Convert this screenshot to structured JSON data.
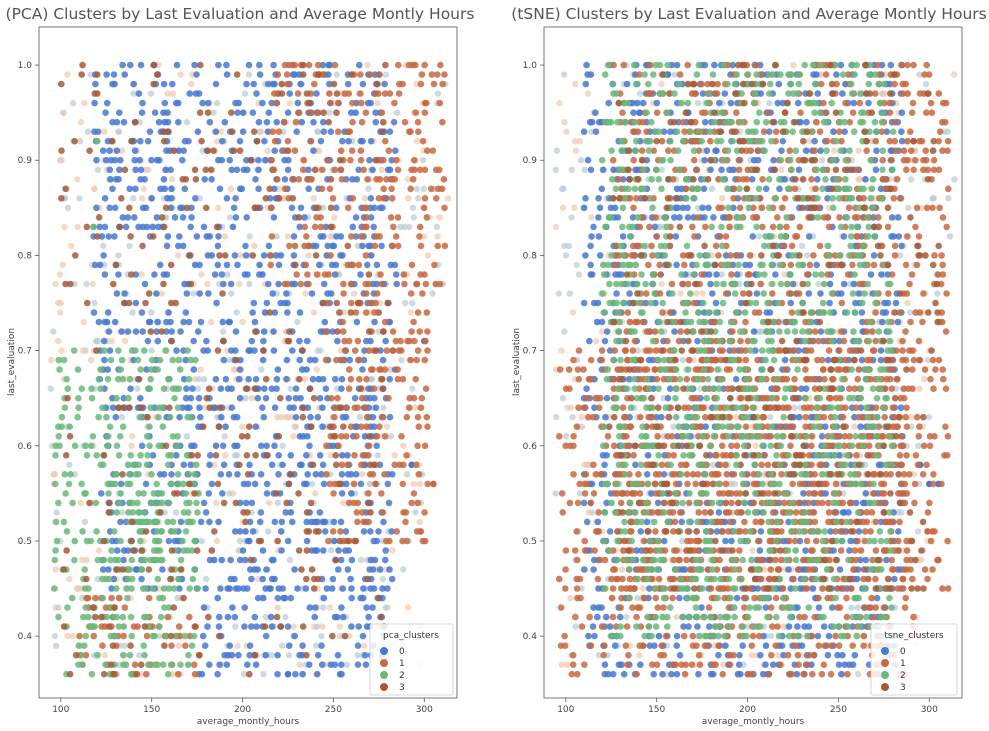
{
  "colors": {
    "cluster_0": "#4878d0",
    "cluster_1": "#c8693f",
    "cluster_2": "#6ab97a",
    "cluster_3": "#a65a3a",
    "faint_blue": "#b9cbd6",
    "faint_peach": "#f0c9ad"
  },
  "chart_data": [
    {
      "type": "scatter",
      "title": "(PCA) Clusters by Last Evaluation and Average Montly Hours",
      "xlabel": "average_montly_hours",
      "ylabel": "last_evaluation",
      "xlim": [
        88,
        318
      ],
      "ylim": [
        0.335,
        1.04
      ],
      "x_ticks": [
        100,
        150,
        200,
        250,
        300
      ],
      "y_ticks": [
        0.4,
        0.5,
        0.6,
        0.7,
        0.8,
        0.9,
        1.0
      ],
      "grid": false,
      "legend": {
        "title": "pca_clusters",
        "placement": "lower-right",
        "entries": [
          "0",
          "1",
          "2",
          "3"
        ]
      },
      "series": [
        {
          "name": "0",
          "color_key": "cluster_0",
          "regions": [
            [
              118,
              285,
              0.64,
              1.0
            ],
            [
              122,
              282,
              0.45,
              0.64
            ],
            [
              175,
              278,
              0.36,
              0.45
            ]
          ],
          "outliers": [
            [
              300,
              0.71
            ],
            [
              293,
              0.58
            ],
            [
              225,
              0.36
            ]
          ]
        },
        {
          "name": "1",
          "color_key": "cluster_1",
          "regions": [
            [
              215,
              310,
              0.77,
              1.0
            ],
            [
              245,
              300,
              0.5,
              0.77
            ],
            [
              110,
              180,
              0.36,
              0.44
            ]
          ],
          "outliers": [
            [
              305,
              0.56
            ],
            [
              298,
              0.51
            ]
          ]
        },
        {
          "name": "2",
          "color_key": "cluster_2",
          "regions": [
            [
              126,
              175,
              0.45,
              0.57
            ],
            [
              96,
              175,
              0.36,
              0.7
            ]
          ],
          "outliers": [
            [
              120,
              0.92
            ],
            [
              118,
              0.83
            ]
          ]
        },
        {
          "name": "3",
          "color_key": "cluster_3",
          "regions": [
            [
              100,
              280,
              0.36,
              1.0
            ]
          ],
          "outliers": []
        }
      ]
    },
    {
      "type": "scatter",
      "title": "(tSNE) Clusters by Last Evaluation and Average Montly Hours",
      "xlabel": "average_montly_hours",
      "ylabel": "last_evaluation",
      "xlim": [
        88,
        318
      ],
      "ylim": [
        0.335,
        1.04
      ],
      "x_ticks": [
        100,
        150,
        200,
        250,
        300
      ],
      "y_ticks": [
        0.4,
        0.5,
        0.6,
        0.7,
        0.8,
        0.9,
        1.0
      ],
      "grid": false,
      "legend": {
        "title": "tsne_clusters",
        "placement": "lower-right",
        "entries": [
          "0",
          "1",
          "2",
          "3"
        ]
      },
      "series": [
        {
          "name": "0",
          "color_key": "cluster_0",
          "regions": [
            [
              110,
              285,
              0.45,
              1.0
            ],
            [
              110,
              280,
              0.36,
              0.45
            ]
          ],
          "outliers": [
            [
              295,
              0.58
            ],
            [
              300,
              0.56
            ],
            [
              305,
              0.56
            ]
          ]
        },
        {
          "name": "1",
          "color_key": "cluster_1",
          "regions": [
            [
              126,
              310,
              0.45,
              1.0
            ],
            [
              126,
              160,
              0.45,
              0.57
            ],
            [
              96,
              290,
              0.36,
              0.7
            ]
          ],
          "outliers": [
            [
              305,
              0.48
            ],
            [
              299,
              0.51
            ]
          ]
        },
        {
          "name": "2",
          "color_key": "cluster_2",
          "regions": [
            [
              120,
              280,
              0.4,
              1.0
            ]
          ],
          "outliers": []
        },
        {
          "name": "3",
          "color_key": "cluster_3",
          "regions": [
            [
              126,
              305,
              0.45,
              1.0
            ]
          ],
          "outliers": []
        }
      ]
    }
  ]
}
